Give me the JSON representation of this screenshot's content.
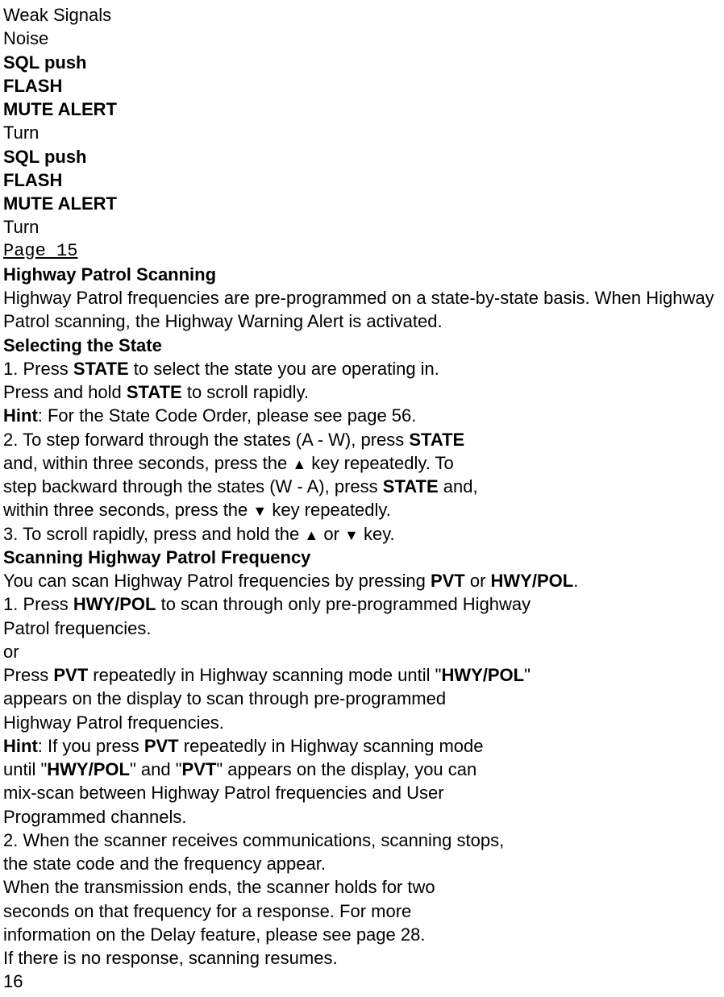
{
  "lines": {
    "l1": "Weak Signals",
    "l2": "Noise",
    "l3": "SQL push",
    "l4": "FLASH",
    "l5": "MUTE ALERT",
    "l6": "Turn",
    "l7": "SQL push",
    "l8": "FLASH",
    "l9": "MUTE ALERT",
    "l10": "Turn",
    "l11": "Page 15",
    "l12": "Highway Patrol Scanning",
    "l13": "Highway Patrol frequencies are pre-programmed on a state-by-state basis. When Highway",
    "l14": "Patrol scanning, the Highway Warning Alert is activated.",
    "l15": "Selecting the State",
    "l16_a": "1. Press ",
    "l16_b": "STATE",
    "l16_c": " to select the state you are operating in.",
    "l17_a": "Press and hold ",
    "l17_b": "STATE",
    "l17_c": " to scroll rapidly.",
    "l18_a": "Hint",
    "l18_b": ": For the State Code Order, please see page 56.",
    "l19_a": "2. To step forward through the states (A - W), press ",
    "l19_b": "STATE",
    "l20_a": "and, within three seconds, press the ",
    "l20_b": "    key repeatedly. To",
    "l21_a": "step backward through the states (W - A), press ",
    "l21_b": "STATE",
    "l21_c": " and,",
    "l22_a": "within three seconds, press the ",
    "l22_b": "    key repeatedly.",
    "l23_a": "3. To scroll rapidly, press and hold the ",
    "l23_b": "    or ",
    "l23_c": "    key.",
    "l24": "Scanning Highway Patrol Frequency",
    "l25_a": "You can scan Highway Patrol frequencies by pressing ",
    "l25_b": "PVT",
    "l25_c": " or ",
    "l25_d": "HWY/POL",
    "l25_e": ".",
    "l26_a": "1. Press ",
    "l26_b": "HWY/POL",
    "l26_c": " to scan through only pre-programmed Highway",
    "l27": "Patrol frequencies.",
    "l28": "or",
    "l29_a": "Press ",
    "l29_b": "PVT",
    "l29_c": " repeatedly in Highway scanning mode until \"",
    "l29_d": "HWY/POL",
    "l29_e": "\"",
    "l30": "appears on the display to scan through pre-programmed",
    "l31": "Highway Patrol frequencies.",
    "l32_a": "Hint",
    "l32_b": ": If you press ",
    "l32_c": "PVT",
    "l32_d": " repeatedly in Highway scanning mode",
    "l33_a": "until \"",
    "l33_b": "HWY/POL",
    "l33_c": "\" and \"",
    "l33_d": "PVT",
    "l33_e": "\" appears on the display, you can",
    "l34": "mix-scan between Highway Patrol frequencies and User",
    "l35": "Programmed channels.",
    "l36": "2. When the scanner receives communications, scanning stops,",
    "l37": "the state code and the frequency appear.",
    "l38": "When the transmission ends, the scanner holds for two",
    "l39": "seconds on that frequency for a response. For more",
    "l40": "information on the Delay feature, please see page 28.",
    "l41": "If there is no response, scanning resumes.",
    "l42": "16"
  },
  "icons": {
    "up": "▲",
    "down": "▼"
  }
}
